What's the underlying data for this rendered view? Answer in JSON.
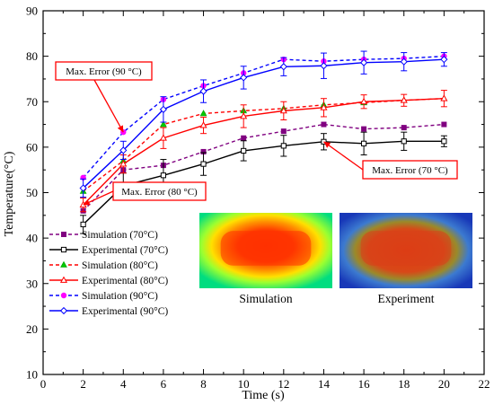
{
  "chart_data": {
    "type": "line",
    "xlabel": "Time (s)",
    "ylabel": "Temperature(°C)",
    "xlim": [
      0,
      22
    ],
    "ylim": [
      10,
      90
    ],
    "xticks": [
      0,
      2,
      4,
      6,
      8,
      10,
      12,
      14,
      16,
      18,
      20,
      22
    ],
    "yticks": [
      10,
      20,
      30,
      40,
      50,
      60,
      70,
      80,
      90
    ],
    "x": [
      2,
      4,
      6,
      8,
      10,
      12,
      14,
      16,
      18,
      20
    ],
    "grid": false,
    "legend_position": "bottom-left",
    "series": [
      {
        "name": "Simulation (70°C)",
        "color": "#800080",
        "line": "dashed",
        "marker": "square",
        "values": [
          46.0,
          55.0,
          56.0,
          59.0,
          62.0,
          63.5,
          65.0,
          64.0,
          64.3,
          65.0
        ]
      },
      {
        "name": "Experimental (70°C)",
        "color": "#000000",
        "line": "solid",
        "marker": "square-open",
        "values": [
          43.0,
          51.5,
          53.8,
          56.3,
          59.2,
          60.3,
          61.2,
          60.8,
          61.3,
          61.3
        ],
        "errors": [
          2.0,
          2.8,
          3.5,
          2.5,
          2.2,
          2.3,
          1.8,
          2.5,
          2.0,
          1.2
        ]
      },
      {
        "name": "Simulation (80°C)",
        "color": "#ff0000",
        "line": "dashed",
        "marker": "triangle",
        "values": [
          50.3,
          57.0,
          65.0,
          67.4,
          68.0,
          68.5,
          69.3,
          69.8,
          70.3,
          70.7
        ]
      },
      {
        "name": "Experimental (80°C)",
        "color": "#ff0000",
        "line": "solid",
        "marker": "triangle-open",
        "values": [
          47.3,
          56.3,
          62.0,
          64.8,
          66.8,
          68.0,
          68.7,
          70.0,
          70.3,
          70.7
        ],
        "errors": [
          1.5,
          2.0,
          2.3,
          1.8,
          2.5,
          2.0,
          2.0,
          1.5,
          1.3,
          1.8
        ]
      },
      {
        "name": "Simulation (90°C)",
        "color": "#0000ff",
        "line": "dashed",
        "marker": "circle",
        "marker_color": "#ff00ff",
        "values": [
          53.3,
          63.3,
          70.5,
          73.5,
          76.3,
          79.3,
          78.9,
          79.3,
          79.5,
          80.0
        ]
      },
      {
        "name": "Experimental (90°C)",
        "color": "#0000ff",
        "line": "solid",
        "marker": "diamond-open",
        "values": [
          51.0,
          59.3,
          68.3,
          72.3,
          75.3,
          77.7,
          77.9,
          78.6,
          78.8,
          79.3
        ],
        "errors": [
          2.0,
          2.0,
          2.8,
          2.5,
          2.5,
          2.0,
          2.8,
          2.5,
          2.0,
          1.5
        ]
      }
    ],
    "annotations": [
      {
        "text": "Max. Error (90 °C)",
        "target": [
          4,
          63.3
        ]
      },
      {
        "text": "Max. Error (80 °C)",
        "target": [
          2,
          47.3
        ]
      },
      {
        "text": "Max. Error (70 °C)",
        "target": [
          14,
          61.2
        ]
      }
    ],
    "insets": [
      {
        "caption": "Simulation",
        "colormap": "hot-core"
      },
      {
        "caption": "Experiment",
        "colormap": "warm-core-blue-edge"
      }
    ]
  }
}
